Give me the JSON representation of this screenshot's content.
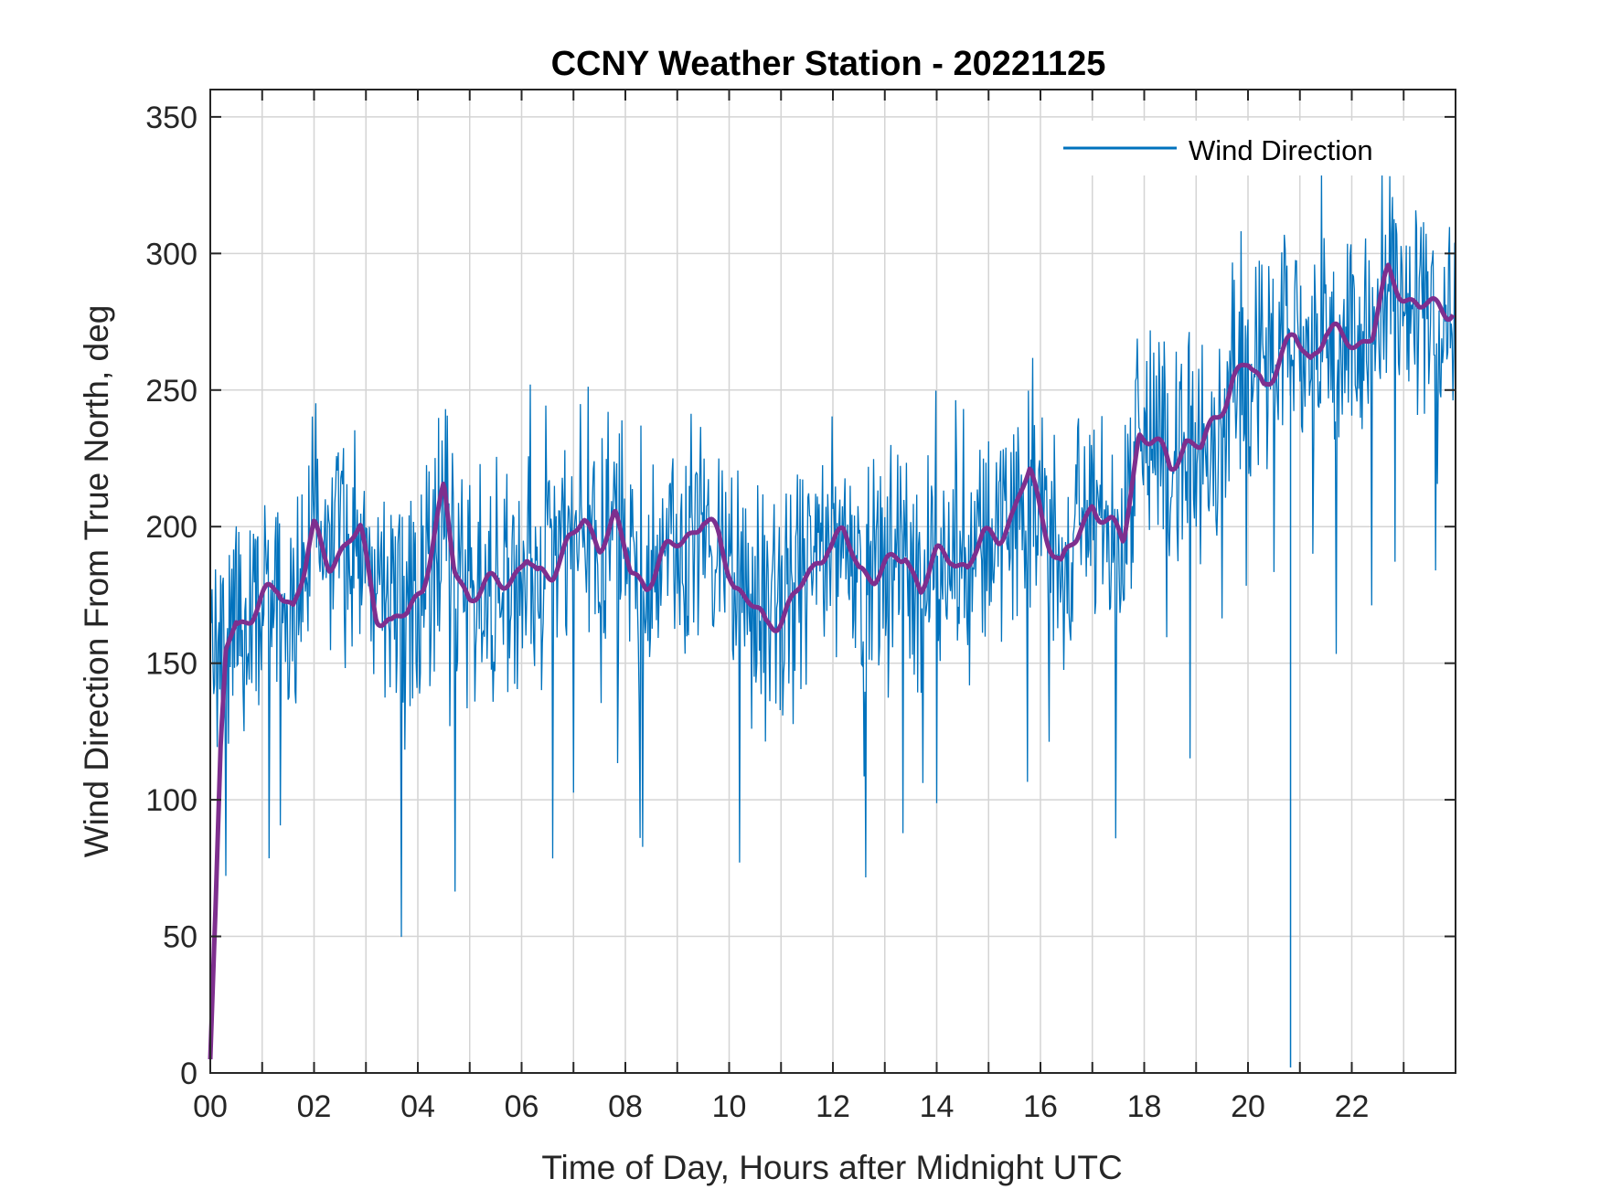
{
  "chart_data": {
    "type": "line",
    "title": "CCNY Weather Station - 20221125",
    "xlabel": "Time of Day, Hours after Midnight UTC",
    "ylabel": "Wind Direction From True North, deg",
    "xlim": [
      0,
      24
    ],
    "ylim": [
      0,
      360
    ],
    "xticks": [
      0,
      2,
      4,
      6,
      8,
      10,
      12,
      14,
      16,
      18,
      20,
      22
    ],
    "xtick_labels": [
      "00",
      "02",
      "04",
      "06",
      "08",
      "10",
      "12",
      "14",
      "16",
      "18",
      "20",
      "22"
    ],
    "yticks": [
      0,
      50,
      100,
      150,
      200,
      250,
      300,
      350
    ],
    "ytick_labels": [
      "0",
      "50",
      "100",
      "150",
      "200",
      "250",
      "300",
      "350"
    ],
    "grid": true,
    "legend": {
      "placement": "top-right",
      "entries": [
        "Wind Direction"
      ]
    },
    "series": [
      {
        "name": "Wind Direction",
        "color": "#0072BD",
        "style": "raw samples oscillating around trend (approx. ±35 deg), thin line",
        "approx_mean_curve": "see 'Running Average' x/y"
      },
      {
        "color": "#7E2F8E",
        "style": "thick smoothed line",
        "x": [
          0,
          0.1,
          0.2,
          0.3,
          0.5,
          0.8,
          1.0,
          1.3,
          1.6,
          1.8,
          2.0,
          2.3,
          2.6,
          2.9,
          3.2,
          3.5,
          3.8,
          4.1,
          4.3,
          4.5,
          4.7,
          5.0,
          5.4,
          5.8,
          6.1,
          6.3,
          6.6,
          6.9,
          7.2,
          7.5,
          7.8,
          8.1,
          8.4,
          8.8,
          9.2,
          9.5,
          9.8,
          10.1,
          10.4,
          10.7,
          11.0,
          11.3,
          11.6,
          11.9,
          12.2,
          12.5,
          12.8,
          13.1,
          13.4,
          13.7,
          14.0,
          14.3,
          14.6,
          14.9,
          15.2,
          15.5,
          15.8,
          16.1,
          16.4,
          16.7,
          17.0,
          17.3,
          17.6,
          17.9,
          18.2,
          18.5,
          18.8,
          19.1,
          19.4,
          19.7,
          20.0,
          20.3,
          20.6,
          20.9,
          21.2,
          21.5,
          21.8,
          22.1,
          22.4,
          22.7,
          23.0,
          23.3,
          23.6,
          23.95
        ],
        "y": [
          5,
          60,
          120,
          155,
          165,
          168,
          172,
          178,
          172,
          182,
          198,
          188,
          192,
          198,
          170,
          163,
          168,
          180,
          195,
          212,
          185,
          175,
          178,
          182,
          188,
          180,
          185,
          195,
          200,
          195,
          203,
          183,
          180,
          190,
          198,
          202,
          195,
          180,
          172,
          163,
          168,
          175,
          183,
          195,
          196,
          185,
          183,
          185,
          190,
          178,
          188,
          190,
          185,
          195,
          198,
          205,
          220,
          200,
          185,
          195,
          210,
          200,
          195,
          235,
          230,
          222,
          232,
          228,
          240,
          255,
          258,
          252,
          262,
          268,
          262,
          272,
          268,
          268,
          270,
          292,
          286,
          280,
          280,
          281
        ]
      }
    ]
  }
}
